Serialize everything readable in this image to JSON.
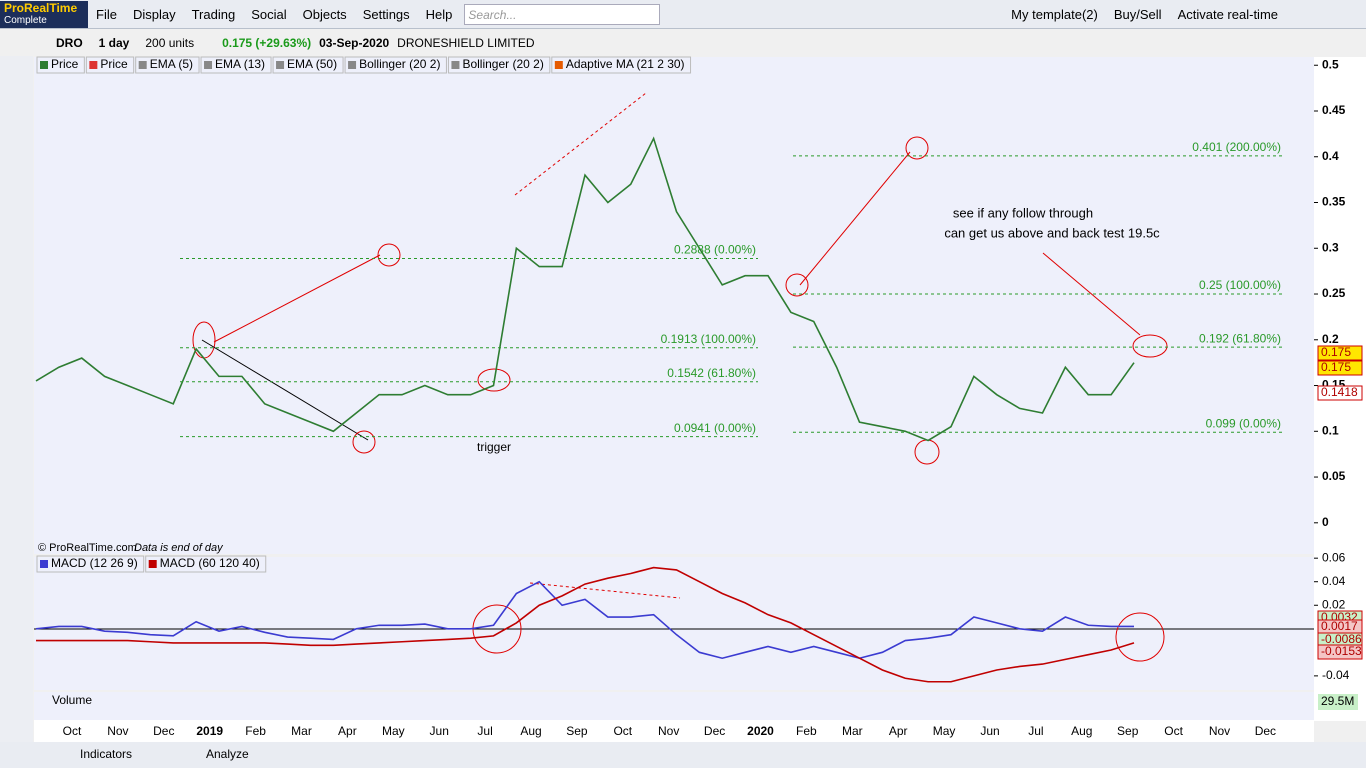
{
  "app": {
    "logo": "ProRealTime",
    "edition": "Complete",
    "menu": [
      "File",
      "Display",
      "Trading",
      "Social",
      "Objects",
      "Settings",
      "Help"
    ],
    "search_placeholder": "Search...",
    "template": "My template(2)",
    "buy_sell": "Buy/Sell",
    "activate": "Activate real-time",
    "ticker": "DRO",
    "period": "1 day",
    "units": "200 units",
    "quote": "0.175 (+29.63%)",
    "date": "03-Sep-2020",
    "instrument": "DRONESHIELD LIMITED",
    "price_legend": [
      "Price",
      "EMA (5)",
      "EMA (13)",
      "EMA (50)",
      "Bollinger (20 2)",
      "Bollinger (20 2)",
      "Adaptive MA (21 2 30)"
    ],
    "volume_legend": "Volume",
    "volume_value": "29.5M",
    "copyright": "© ProRealTime.com",
    "data_note": "Data is end of day",
    "time_axis": [
      "Oct",
      "Nov",
      "Dec",
      "2019",
      "Feb",
      "Mar",
      "Apr",
      "May",
      "Jun",
      "Jul",
      "Aug",
      "Sep",
      "Oct",
      "Nov",
      "Dec",
      "2020",
      "Feb",
      "Mar",
      "Apr",
      "May",
      "Jun",
      "Jul",
      "Aug",
      "Sep",
      "Oct",
      "Nov",
      "Dec"
    ],
    "bottom": {
      "indicators": "Indicators",
      "analyze": "Analyze"
    }
  },
  "chart_data": [
    {
      "type": "line",
      "series": [
        {
          "name": "Price",
          "color": "#2e7d32",
          "values": [
            0.155,
            0.17,
            0.18,
            0.16,
            0.15,
            0.14,
            0.13,
            0.19,
            0.16,
            0.16,
            0.13,
            0.12,
            0.11,
            0.1,
            0.12,
            0.14,
            0.14,
            0.15,
            0.14,
            0.14,
            0.15,
            0.3,
            0.28,
            0.28,
            0.38,
            0.35,
            0.37,
            0.42,
            0.34,
            0.3,
            0.26,
            0.27,
            0.27,
            0.23,
            0.22,
            0.17,
            0.11,
            0.105,
            0.1,
            0.09,
            0.105,
            0.16,
            0.14,
            0.125,
            0.12,
            0.17,
            0.14,
            0.14,
            0.175
          ]
        }
      ],
      "ylim": [
        -0.033,
        0.509
      ],
      "yticks": [
        0,
        0.05,
        0.1,
        0.15,
        0.2,
        0.25,
        0.3,
        0.35,
        0.4,
        0.45,
        0.5
      ],
      "last_values": [
        0.175,
        0.175,
        0.1418
      ],
      "last_colors": [
        "#ffe600",
        "#ffe600",
        "#ffffff"
      ],
      "fib_sets": [
        [
          {
            "value": 0.2888,
            "label": "0.2888 (0.00%)"
          },
          {
            "value": 0.1913,
            "label": "0.1913 (100.00%)"
          },
          {
            "value": 0.1542,
            "label": "0.1542 (61.80%)"
          },
          {
            "value": 0.0941,
            "label": "0.0941 (0.00%)"
          }
        ],
        [
          {
            "value": 0.401,
            "label": "0.401 (200.00%)"
          },
          {
            "value": 0.25,
            "label": "0.25 (100.00%)"
          },
          {
            "value": 0.192,
            "label": "0.192 (61.80%)"
          },
          {
            "value": 0.099,
            "label": "0.099 (0.00%)"
          }
        ]
      ],
      "annotations": [
        "see if any follow through",
        "can get us above and back test 19.5c",
        "trigger"
      ]
    },
    {
      "type": "line",
      "series": [
        {
          "name": "MACD (12 26 9)",
          "color": "#3b3bd1",
          "values": [
            0,
            0.002,
            0.002,
            -0.002,
            -0.003,
            -0.005,
            -0.006,
            0.006,
            -0.002,
            0.002,
            -0.003,
            -0.007,
            -0.008,
            -0.009,
            0,
            0.003,
            0.003,
            0.004,
            0,
            0,
            0.003,
            0.03,
            0.04,
            0.02,
            0.025,
            0.01,
            0.01,
            0.012,
            -0.005,
            -0.02,
            -0.025,
            -0.02,
            -0.015,
            -0.02,
            -0.015,
            -0.02,
            -0.025,
            -0.02,
            -0.01,
            -0.008,
            -0.005,
            0.01,
            0.005,
            0,
            -0.002,
            0.01,
            0.003,
            0.002,
            0.002
          ]
        },
        {
          "name": "MACD (60 120 40)",
          "color": "#c00000",
          "values": [
            -0.01,
            -0.01,
            -0.01,
            -0.01,
            -0.01,
            -0.011,
            -0.012,
            -0.012,
            -0.012,
            -0.012,
            -0.012,
            -0.013,
            -0.014,
            -0.014,
            -0.013,
            -0.012,
            -0.011,
            -0.01,
            -0.009,
            -0.008,
            -0.006,
            0.005,
            0.02,
            0.028,
            0.038,
            0.043,
            0.047,
            0.052,
            0.05,
            0.04,
            0.03,
            0.022,
            0.012,
            0.005,
            -0.005,
            -0.015,
            -0.025,
            -0.035,
            -0.042,
            -0.045,
            -0.045,
            -0.04,
            -0.035,
            -0.032,
            -0.03,
            -0.026,
            -0.022,
            -0.018,
            -0.012
          ]
        }
      ],
      "ylim": [
        -0.052,
        0.061
      ],
      "yticks": [
        0.06,
        0.04,
        0.02,
        -0.04
      ],
      "last_values": [
        0.0032,
        0.0017,
        -0.0086,
        -0.0153
      ],
      "last_colors": [
        "#c8f0c8",
        "#f4c6c6",
        "#c8f0c8",
        "#f4c6c6"
      ]
    }
  ]
}
